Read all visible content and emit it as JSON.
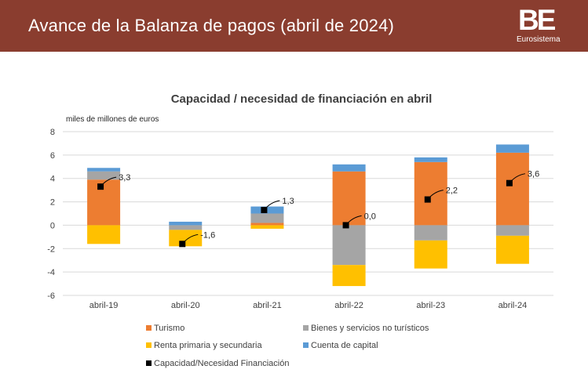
{
  "header": {
    "title": "Avance de la Balanza de pagos (abril de 2024)",
    "logo_text": "BE",
    "logo_sub": "Eurosistema"
  },
  "colors": {
    "header_bg": "#8a3d2f",
    "turismo": "#ed7d31",
    "bienes": "#a5a5a5",
    "renta": "#ffc000",
    "cuenta": "#5b9bd5",
    "capacidad": "#000000"
  },
  "chart_data": {
    "type": "bar",
    "stacked": true,
    "title": "Capacidad / necesidad de financiación en abril",
    "ylabel": "miles de millones de euros",
    "ylim": [
      -6,
      8
    ],
    "yticks": [
      -6,
      -4,
      -2,
      0,
      2,
      4,
      6,
      8
    ],
    "categories": [
      "abril-19",
      "abril-20",
      "abril-21",
      "abril-22",
      "abril-23",
      "abril-24"
    ],
    "series": [
      {
        "name": "Turismo",
        "color_key": "turismo",
        "values": [
          3.9,
          0.0,
          0.2,
          4.6,
          5.4,
          6.2
        ]
      },
      {
        "name": "Bienes y servicios no turísticos",
        "color_key": "bienes",
        "values": [
          0.7,
          -0.4,
          0.8,
          -3.4,
          -1.3,
          -0.9
        ]
      },
      {
        "name": "Renta primaria y secundaria",
        "color_key": "renta",
        "values": [
          -1.6,
          -1.4,
          -0.3,
          -1.8,
          -2.4,
          -2.4
        ]
      },
      {
        "name": "Cuenta de capital",
        "color_key": "cuenta",
        "values": [
          0.3,
          0.3,
          0.6,
          0.6,
          0.4,
          0.7
        ]
      }
    ],
    "line": {
      "name": "Capacidad/Necesidad Financiación",
      "values": [
        3.3,
        -1.6,
        1.3,
        0.0,
        2.2,
        3.6
      ],
      "labels": [
        "3,3",
        "-1,6",
        "1,3",
        "0,0",
        "2,2",
        "3,6"
      ]
    },
    "legend_order": [
      "Turismo",
      "Bienes y servicios no turísticos",
      "Renta primaria y secundaria",
      "Cuenta de capital",
      "Capacidad/Necesidad Financiación"
    ]
  }
}
